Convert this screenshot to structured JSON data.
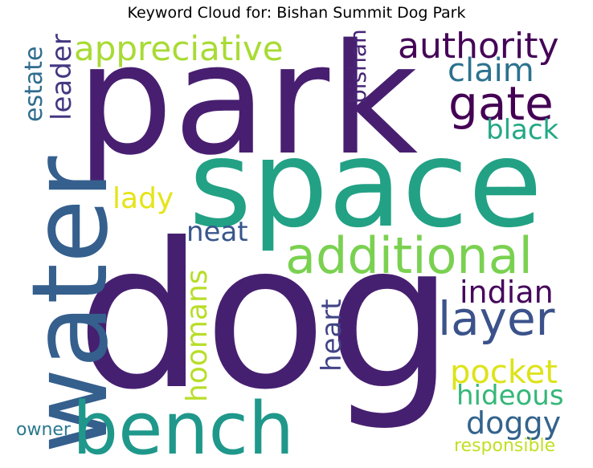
{
  "title": "Keyword Cloud for: Bishan Summit Dog Park",
  "colors": {
    "background": "#ffffff",
    "title": "#000000"
  },
  "words": [
    {
      "text": "park",
      "color": "#481f70",
      "orientation": "horizontal"
    },
    {
      "text": "space",
      "color": "#22a185",
      "orientation": "horizontal"
    },
    {
      "text": "dog",
      "color": "#462070",
      "orientation": "horizontal"
    },
    {
      "text": "water",
      "color": "#355f8d",
      "orientation": "vertical"
    },
    {
      "text": "bench",
      "color": "#1f988b",
      "orientation": "horizontal"
    },
    {
      "text": "additional",
      "color": "#7ad151",
      "orientation": "horizontal"
    },
    {
      "text": "appreciative",
      "color": "#a8db34",
      "orientation": "horizontal"
    },
    {
      "text": "authority",
      "color": "#450457",
      "orientation": "horizontal"
    },
    {
      "text": "gate",
      "color": "#440154",
      "orientation": "horizontal"
    },
    {
      "text": "claim",
      "color": "#2c728e",
      "orientation": "horizontal"
    },
    {
      "text": "black",
      "color": "#22a884",
      "orientation": "horizontal"
    },
    {
      "text": "layer",
      "color": "#3b528b",
      "orientation": "horizontal"
    },
    {
      "text": "indian",
      "color": "#46085c",
      "orientation": "horizontal"
    },
    {
      "text": "lady",
      "color": "#e5e419",
      "orientation": "horizontal"
    },
    {
      "text": "neat",
      "color": "#39568c",
      "orientation": "horizontal"
    },
    {
      "text": "pocket",
      "color": "#dde318",
      "orientation": "horizontal"
    },
    {
      "text": "hideous",
      "color": "#35b779",
      "orientation": "horizontal"
    },
    {
      "text": "doggy",
      "color": "#33638d",
      "orientation": "horizontal"
    },
    {
      "text": "responsible",
      "color": "#c2df23",
      "orientation": "horizontal"
    },
    {
      "text": "owner",
      "color": "#2a788e",
      "orientation": "horizontal"
    },
    {
      "text": "leader",
      "color": "#453781",
      "orientation": "vertical"
    },
    {
      "text": "estate",
      "color": "#2f6c8e",
      "orientation": "vertical"
    },
    {
      "text": "bishan",
      "color": "#482576",
      "orientation": "vertical"
    },
    {
      "text": "hoomans",
      "color": "#b8de29",
      "orientation": "vertical"
    },
    {
      "text": "heart",
      "color": "#414487",
      "orientation": "vertical"
    }
  ]
}
